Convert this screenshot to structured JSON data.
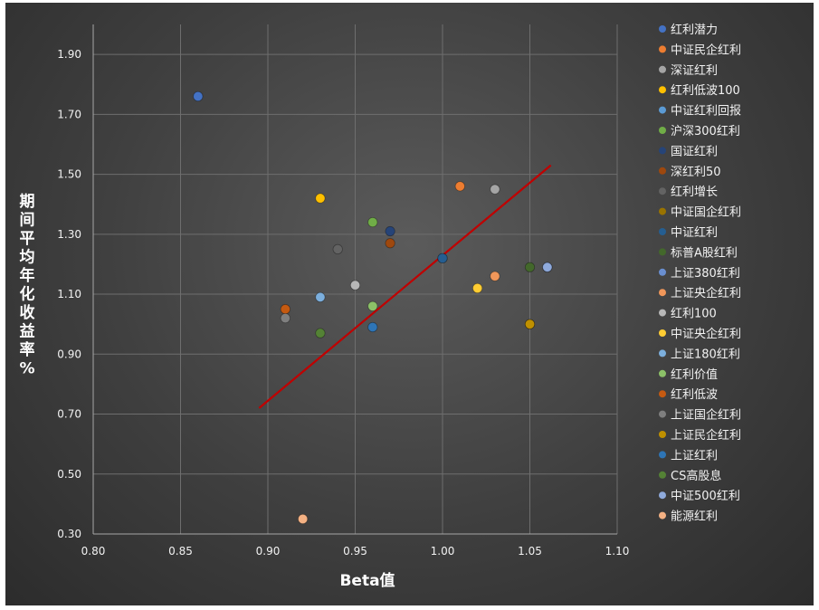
{
  "chart_data": {
    "type": "scatter",
    "xlabel": "Beta值",
    "ylabel": "期间平均年化收益率%",
    "xlim": [
      0.8,
      1.1
    ],
    "ylim": [
      0.3,
      2.0
    ],
    "x_ticks": [
      "0.80",
      "0.85",
      "0.90",
      "0.95",
      "1.00",
      "1.05",
      "1.10"
    ],
    "y_ticks": [
      "0.30",
      "0.50",
      "0.70",
      "0.90",
      "1.10",
      "1.30",
      "1.50",
      "1.70",
      "1.90"
    ],
    "grid": true,
    "legend_position": "right",
    "series": [
      {
        "name": "红利潜力",
        "x": 0.86,
        "y": 1.76,
        "color": "#4472c4"
      },
      {
        "name": "中证民企红利",
        "x": 1.01,
        "y": 1.46,
        "color": "#ed7d31"
      },
      {
        "name": "深证红利",
        "x": 1.03,
        "y": 1.45,
        "color": "#a5a5a5"
      },
      {
        "name": "红利低波100",
        "x": 0.93,
        "y": 1.42,
        "color": "#ffc000"
      },
      {
        "name": "中证红利回报",
        "x": 1.0,
        "y": 1.22,
        "color": "#5b9bd5"
      },
      {
        "name": "沪深300红利",
        "x": 0.96,
        "y": 1.34,
        "color": "#70ad47"
      },
      {
        "name": "国证红利",
        "x": 0.97,
        "y": 1.31,
        "color": "#264478"
      },
      {
        "name": "深红利50",
        "x": 0.97,
        "y": 1.27,
        "color": "#9e480e"
      },
      {
        "name": "红利增长",
        "x": 0.94,
        "y": 1.25,
        "color": "#636363"
      },
      {
        "name": "中证国企红利",
        "x": 1.05,
        "y": 1.0,
        "color": "#997300"
      },
      {
        "name": "中证红利",
        "x": 1.0,
        "y": 1.22,
        "color": "#255e91"
      },
      {
        "name": "标普A股红利",
        "x": 1.05,
        "y": 1.19,
        "color": "#43682b"
      },
      {
        "name": "上证380红利",
        "x": 1.06,
        "y": 1.19,
        "color": "#698ed0"
      },
      {
        "name": "上证央企红利",
        "x": 1.03,
        "y": 1.16,
        "color": "#f1975a"
      },
      {
        "name": "红利100",
        "x": 0.95,
        "y": 1.13,
        "color": "#b7b7b7"
      },
      {
        "name": "中证央企红利",
        "x": 1.02,
        "y": 1.12,
        "color": "#ffcd33"
      },
      {
        "name": "上证180红利",
        "x": 0.93,
        "y": 1.09,
        "color": "#7cafdd"
      },
      {
        "name": "红利价值",
        "x": 0.96,
        "y": 1.06,
        "color": "#8cc168"
      },
      {
        "name": "红利低波",
        "x": 0.91,
        "y": 1.05,
        "color": "#c55a11"
      },
      {
        "name": "上证国企红利",
        "x": 0.91,
        "y": 1.02,
        "color": "#7f7f7f"
      },
      {
        "name": "上证民企红利",
        "x": 1.05,
        "y": 1.0,
        "color": "#bf9000"
      },
      {
        "name": "上证红利",
        "x": 0.96,
        "y": 0.99,
        "color": "#2e75b6"
      },
      {
        "name": "CS高股息",
        "x": 0.93,
        "y": 0.97,
        "color": "#548235"
      },
      {
        "name": "中证500红利",
        "x": 1.06,
        "y": 1.19,
        "color": "#8faadc"
      },
      {
        "name": "能源红利",
        "x": 0.92,
        "y": 0.35,
        "color": "#f4b183"
      }
    ],
    "trendline": {
      "x": [
        0.895,
        1.062
      ],
      "y": [
        0.72,
        1.53
      ],
      "color": "#c00000"
    }
  }
}
